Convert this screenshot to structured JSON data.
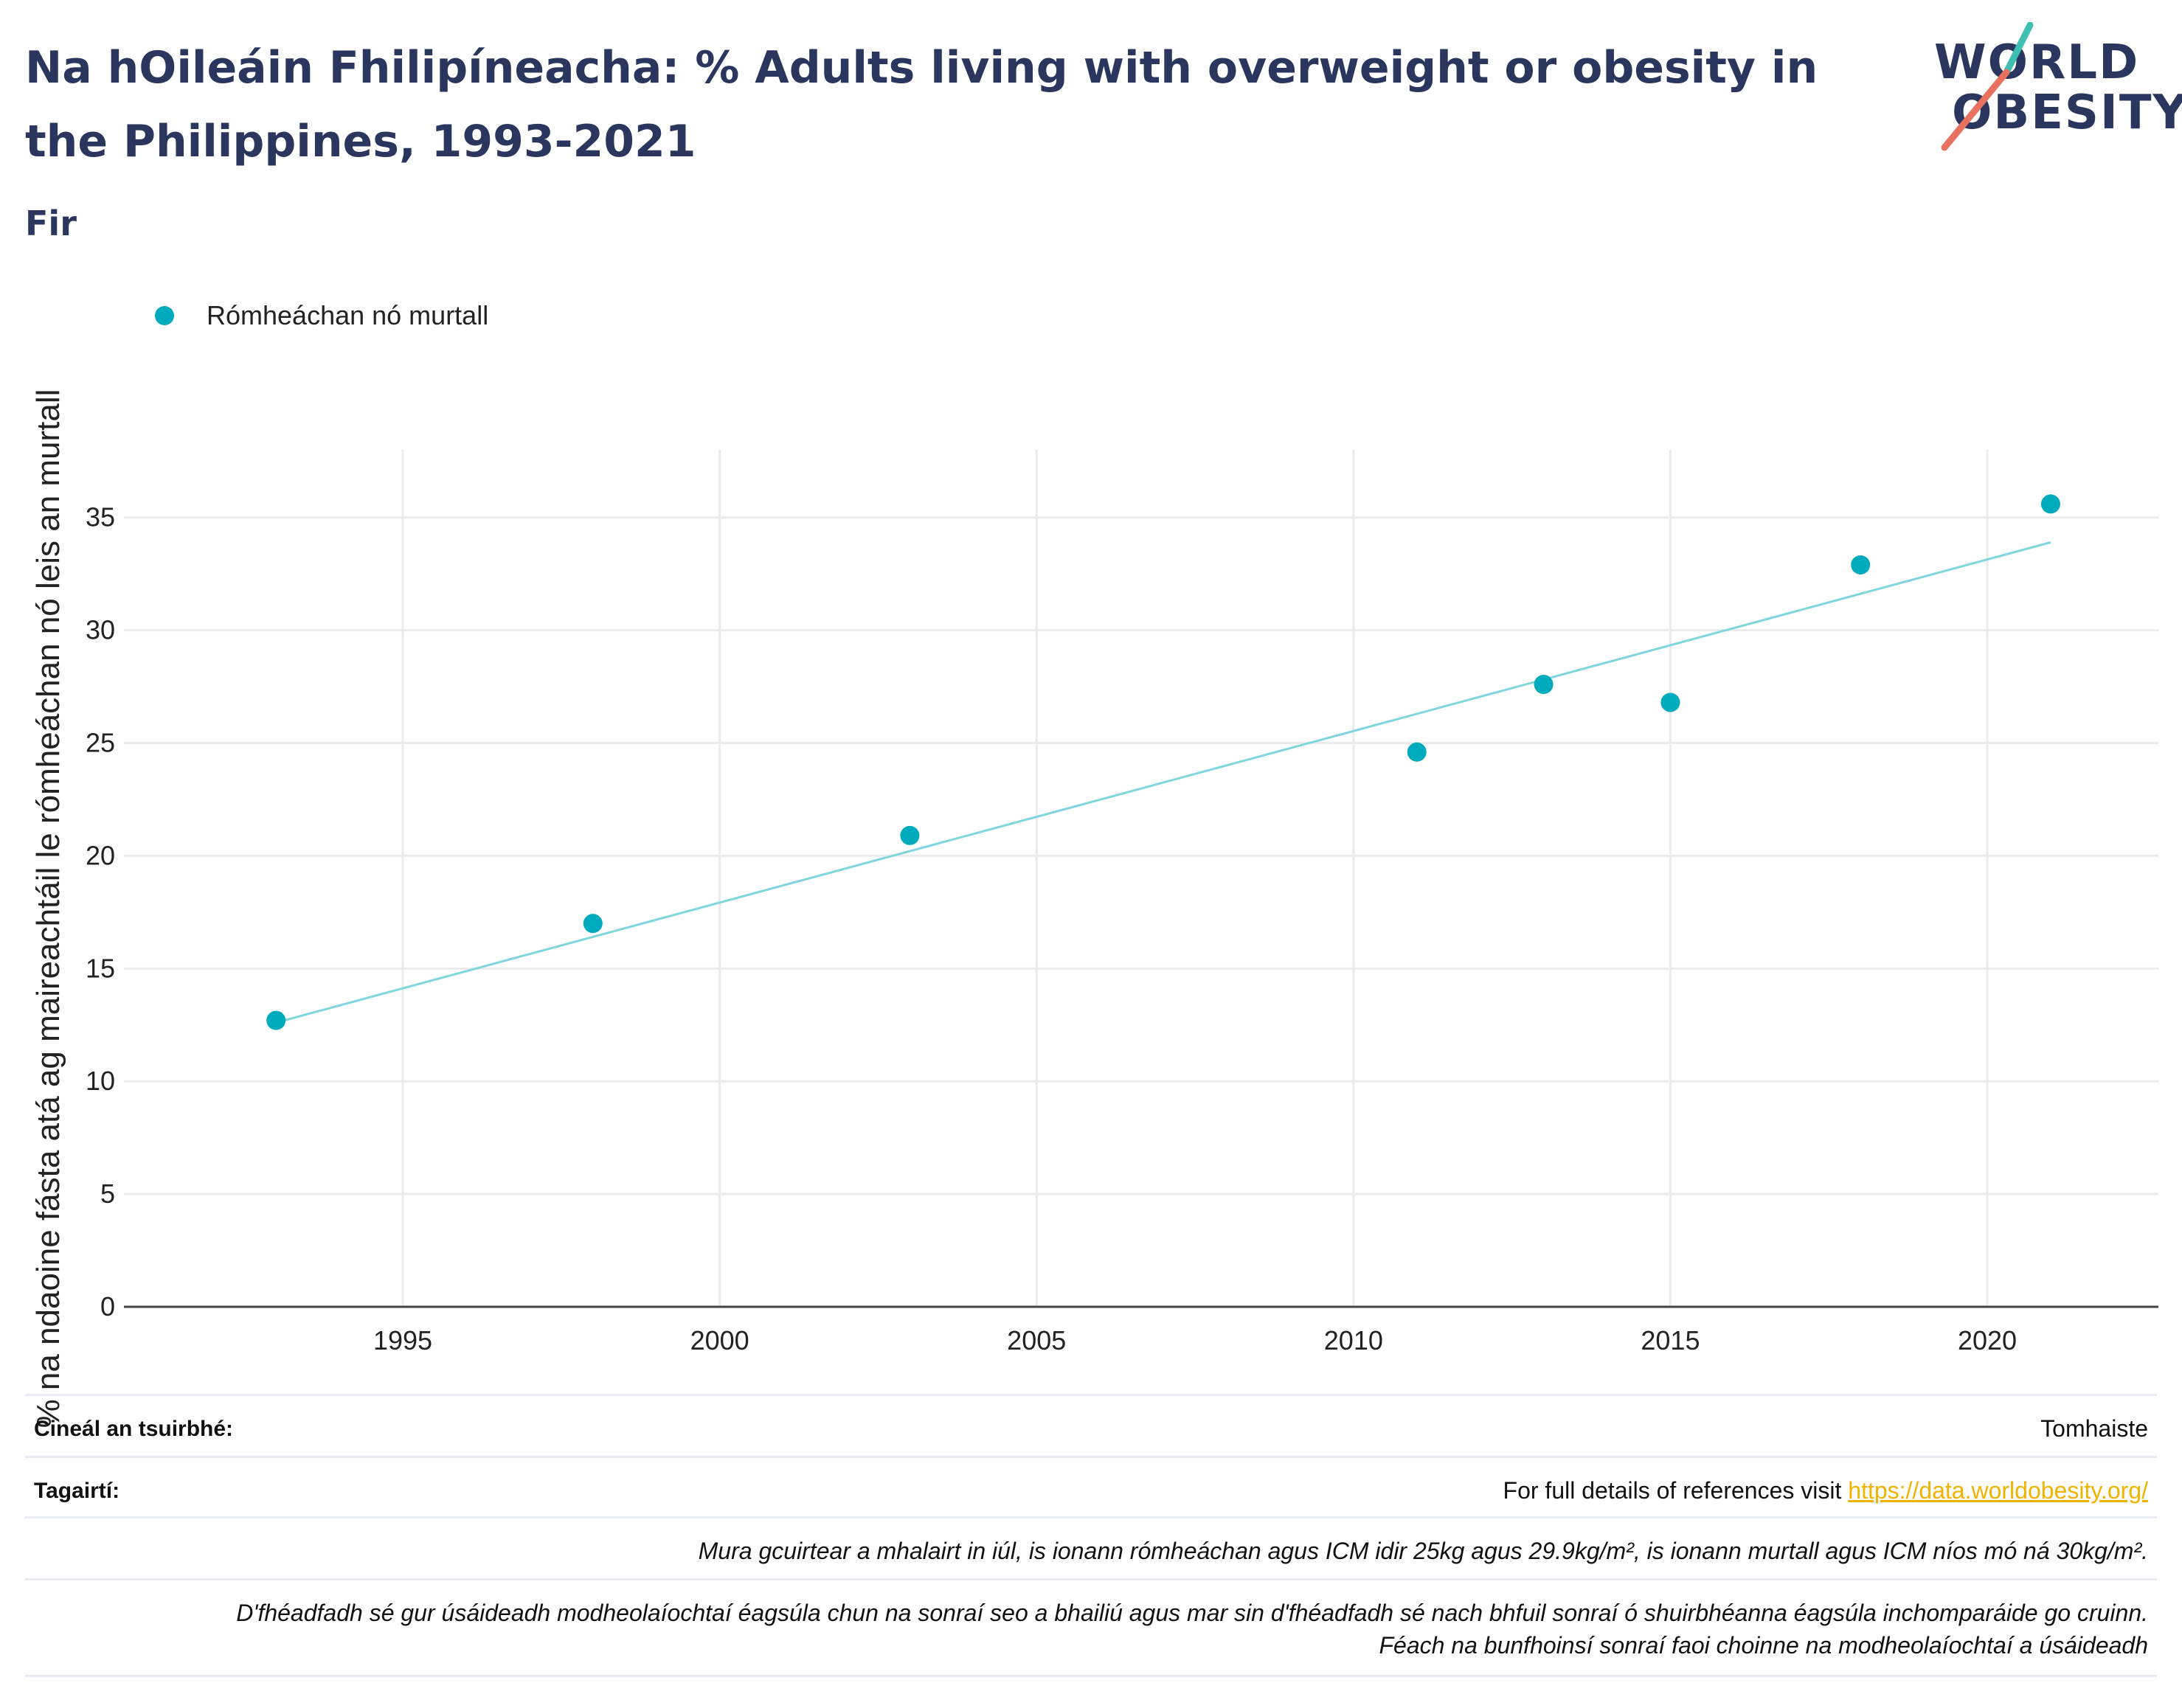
{
  "header": {
    "title": "Na hOileáin Fhilipíneacha: % Adults living with overweight or obesity in the Philippines, 1993-2021",
    "subtitle": "Fir"
  },
  "logo": {
    "line1": "WORLD",
    "line2": "OBESITY",
    "colors": {
      "navy": "#2b365e",
      "teal": "#3fbfb2",
      "coral": "#e8705f"
    }
  },
  "legend": {
    "series_label": "Rómheáchan nó murtall",
    "color": "#00abbd"
  },
  "chart_data": {
    "type": "scatter",
    "title": "Na hOileáin Fhilipíneacha: % Adults living with overweight or obesity in the Philippines, 1993-2021",
    "subtitle": "Fir",
    "ylabel": "% na ndaoine fásta atá ag maireachtáil le rómheáchan nó leis an murtall",
    "xlabel": "",
    "xlim": [
      1990.6,
      2022.7
    ],
    "ylim": [
      0,
      38
    ],
    "x_ticks": [
      1995,
      2000,
      2005,
      2010,
      2015,
      2020
    ],
    "y_ticks": [
      0,
      5,
      10,
      15,
      20,
      25,
      30,
      35
    ],
    "grid": true,
    "legend_position": "top-left",
    "series": [
      {
        "name": "Rómheáchan nó murtall",
        "color": "#00abbd",
        "x": [
          1993,
          1998,
          2003,
          2011,
          2013,
          2015,
          2018,
          2021
        ],
        "y": [
          12.7,
          17.0,
          20.9,
          24.6,
          27.6,
          26.8,
          32.9,
          35.6
        ]
      }
    ],
    "trendline": {
      "color": "#7fd6dd",
      "x": [
        1993,
        2021
      ],
      "y": [
        12.6,
        33.9
      ]
    }
  },
  "info": {
    "survey_type_label": "Cineál an tsuirbhé:",
    "survey_type_value": "Tomhaiste",
    "references_label": "Tagairtí:",
    "references_text": "For full details of references visit ",
    "references_link": "https://data.worldobesity.org/",
    "note1": "Mura gcuirtear a mhalairt in iúl, is ionann rómheáchan agus ICM idir 25kg agus 29.9kg/m², is ionann murtall agus ICM níos mó ná 30kg/m².",
    "note2_line1": "D'fhéadfadh sé gur úsáideadh modheolaíochtaí éagsúla chun na sonraí seo a bhailiú agus mar sin d'fhéadfadh sé nach bhfuil sonraí ó shuirbhéanna éagsúla inchomparáide go cruinn.",
    "note2_line2": "Féach na bunfhoinsí sonraí faoi choinne na modheolaíochtaí a úsáideadh"
  }
}
